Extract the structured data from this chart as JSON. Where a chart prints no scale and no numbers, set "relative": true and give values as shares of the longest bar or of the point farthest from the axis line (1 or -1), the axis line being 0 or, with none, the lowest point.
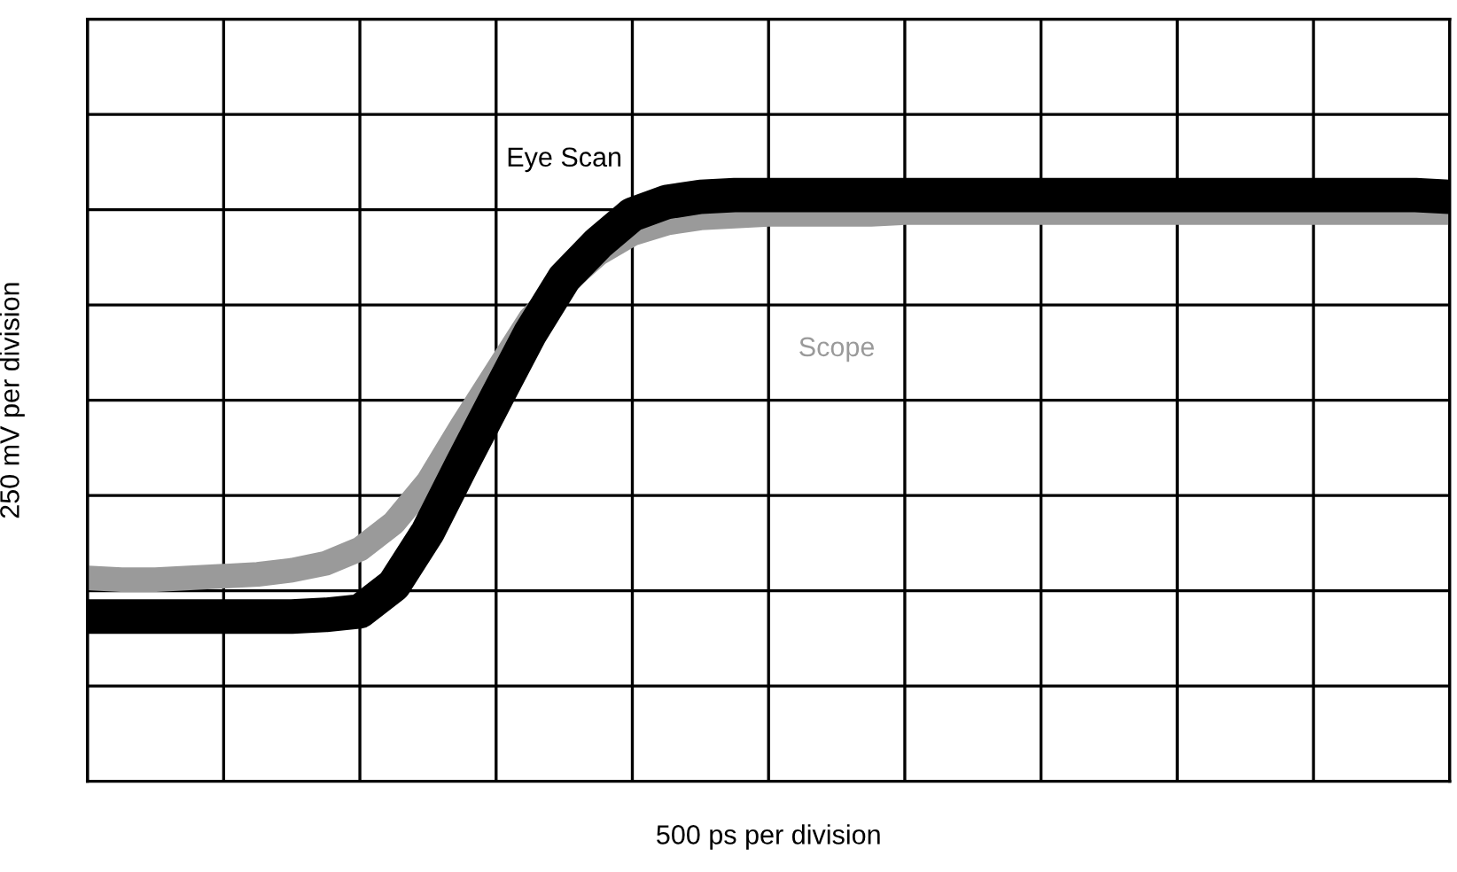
{
  "chart_data": {
    "type": "line",
    "relative": true,
    "xlabel": "500 ps per division",
    "ylabel": "250 mV per division",
    "categories": [
      null,
      null,
      null,
      null,
      null,
      null,
      null,
      null,
      null,
      null,
      null,
      null,
      null,
      null,
      null,
      null,
      null,
      null,
      null,
      null,
      null,
      null,
      null,
      null,
      null,
      null,
      null,
      null,
      null,
      null,
      null,
      null,
      null,
      null,
      null,
      null,
      null,
      null,
      null,
      null,
      null
    ],
    "series": [
      {
        "name": "Scope",
        "color": "#9a9a9a",
        "values": [
          0.347,
          0.344,
          0.344,
          0.347,
          0.35,
          0.353,
          0.36,
          0.372,
          0.396,
          0.441,
          0.511,
          0.607,
          0.698,
          0.789,
          0.849,
          0.9,
          0.934,
          0.952,
          0.961,
          0.964,
          0.967,
          0.967,
          0.967,
          0.967,
          0.97,
          0.97,
          0.97,
          0.97,
          0.97,
          0.97,
          0.97,
          0.97,
          0.97,
          0.97,
          0.97,
          0.97,
          0.97,
          0.97,
          0.97,
          0.97,
          0.97
        ]
      },
      {
        "name": "Eye Scan",
        "color": "#000000",
        "values": [
          0.281,
          0.281,
          0.281,
          0.281,
          0.281,
          0.281,
          0.281,
          0.284,
          0.29,
          0.335,
          0.426,
          0.541,
          0.653,
          0.764,
          0.858,
          0.918,
          0.967,
          0.988,
          0.997,
          1.0,
          1.0,
          1.0,
          1.0,
          1.0,
          1.0,
          1.0,
          1.0,
          1.0,
          1.0,
          1.0,
          1.0,
          1.0,
          1.0,
          1.0,
          1.0,
          1.0,
          1.0,
          1.0,
          1.0,
          1.0,
          0.997
        ]
      }
    ],
    "grid": true,
    "legend": false,
    "marker": "none",
    "line_style": "solid"
  }
}
